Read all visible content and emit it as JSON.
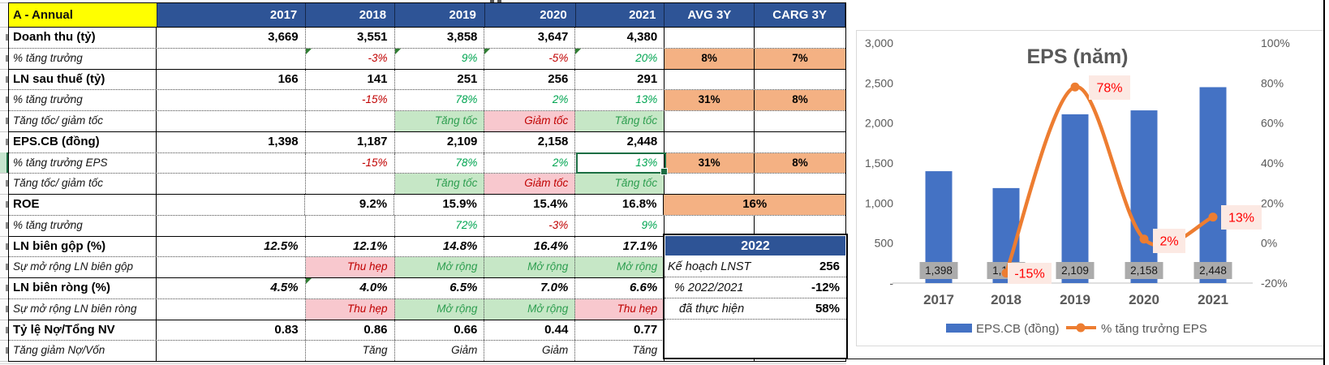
{
  "sheet": {
    "corner_label": "A - Annual",
    "header_columns": [
      "2017",
      "2018",
      "2019",
      "2020",
      "2021",
      "AVG 3Y",
      "CARG 3Y"
    ],
    "rows": [
      {
        "label": "Doanh thu (tỷ)",
        "kind": "metric",
        "cells": [
          {
            "t": "3,669"
          },
          {
            "t": "3,551"
          },
          {
            "t": "3,858"
          },
          {
            "t": "3,647"
          },
          {
            "t": "4,380"
          },
          {
            "t": ""
          },
          {
            "t": ""
          }
        ]
      },
      {
        "label": "% tăng trưởng",
        "kind": "sub",
        "cells": [
          {
            "t": ""
          },
          {
            "t": "-3%",
            "c": "red",
            "flag": true
          },
          {
            "t": "9%",
            "c": "green",
            "flag": true
          },
          {
            "t": "-5%",
            "c": "red",
            "flag": true
          },
          {
            "t": "20%",
            "c": "green",
            "flag": true
          },
          {
            "t": "8%",
            "bg": "orange"
          },
          {
            "t": "7%",
            "bg": "orange"
          }
        ]
      },
      {
        "label": "LN sau thuế (tỷ)",
        "kind": "metric",
        "cells": [
          {
            "t": "166"
          },
          {
            "t": "141"
          },
          {
            "t": "251"
          },
          {
            "t": "256"
          },
          {
            "t": "291"
          },
          {
            "t": ""
          },
          {
            "t": ""
          }
        ]
      },
      {
        "label": "% tăng trưởng",
        "kind": "sub",
        "cells": [
          {
            "t": ""
          },
          {
            "t": "-15%",
            "c": "red"
          },
          {
            "t": "78%",
            "c": "green"
          },
          {
            "t": "2%",
            "c": "green"
          },
          {
            "t": "13%",
            "c": "green"
          },
          {
            "t": "31%",
            "bg": "orange"
          },
          {
            "t": "8%",
            "bg": "orange"
          }
        ]
      },
      {
        "label": "Tăng tốc/ giảm tốc",
        "kind": "sub",
        "cells": [
          {
            "t": ""
          },
          {
            "t": ""
          },
          {
            "t": "Tăng tốc",
            "bg": "green"
          },
          {
            "t": "Giảm tốc",
            "bg": "pink"
          },
          {
            "t": "Tăng tốc",
            "bg": "green"
          },
          {
            "t": ""
          },
          {
            "t": ""
          }
        ]
      },
      {
        "label": "EPS.CB (đồng)",
        "kind": "metric",
        "cells": [
          {
            "t": "1,398"
          },
          {
            "t": "1,187"
          },
          {
            "t": "2,109"
          },
          {
            "t": "2,158"
          },
          {
            "t": "2,448"
          },
          {
            "t": ""
          },
          {
            "t": ""
          }
        ]
      },
      {
        "label": "% tăng trưởng EPS",
        "kind": "sub",
        "cells": [
          {
            "t": ""
          },
          {
            "t": "-15%",
            "c": "red"
          },
          {
            "t": "78%",
            "c": "green"
          },
          {
            "t": "2%",
            "c": "green"
          },
          {
            "t": "13%",
            "c": "green",
            "selected": true
          },
          {
            "t": "31%",
            "bg": "orange"
          },
          {
            "t": "8%",
            "bg": "orange"
          }
        ]
      },
      {
        "label": "Tăng tốc/ giảm tốc",
        "kind": "sub",
        "cells": [
          {
            "t": ""
          },
          {
            "t": ""
          },
          {
            "t": "Tăng tốc",
            "bg": "green"
          },
          {
            "t": "Giảm tốc",
            "bg": "pink"
          },
          {
            "t": "Tăng tốc",
            "bg": "green"
          },
          {
            "t": ""
          },
          {
            "t": ""
          }
        ]
      },
      {
        "label": "ROE",
        "kind": "metric",
        "cells": [
          {
            "t": ""
          },
          {
            "t": "9.2%"
          },
          {
            "t": "15.9%"
          },
          {
            "t": "15.4%"
          },
          {
            "t": "16.8%"
          },
          {
            "t": "16%",
            "bg": "orange",
            "span": 2
          }
        ]
      },
      {
        "label": "% tăng trưởng",
        "kind": "sub",
        "cells": [
          {
            "t": ""
          },
          {
            "t": ""
          },
          {
            "t": "72%",
            "c": "green"
          },
          {
            "t": "-3%",
            "c": "red"
          },
          {
            "t": "9%",
            "c": "green"
          },
          {
            "t": ""
          },
          {
            "t": ""
          }
        ]
      },
      {
        "label": "LN biên gộp (%)",
        "kind": "metric",
        "vi": true,
        "cells": [
          {
            "t": "12.5%"
          },
          {
            "t": "12.1%"
          },
          {
            "t": "14.8%"
          },
          {
            "t": "16.4%"
          },
          {
            "t": "17.1%"
          },
          {
            "t": ""
          },
          {
            "t": ""
          }
        ]
      },
      {
        "label": "Sự mở rộng LN biên gộp",
        "kind": "sub",
        "cells": [
          {
            "t": ""
          },
          {
            "t": "Thu hẹp",
            "bg": "pink"
          },
          {
            "t": "Mở rộng",
            "bg": "green"
          },
          {
            "t": "Mở rộng",
            "bg": "green"
          },
          {
            "t": "Mở rộng",
            "bg": "green"
          },
          {
            "t": ""
          },
          {
            "t": ""
          }
        ]
      },
      {
        "label": "LN biên ròng (%)",
        "kind": "metric",
        "vi": true,
        "cells": [
          {
            "t": "4.5%"
          },
          {
            "t": "4.0%",
            "flag": true
          },
          {
            "t": "6.5%"
          },
          {
            "t": "7.0%"
          },
          {
            "t": "6.6%"
          },
          {
            "t": ""
          },
          {
            "t": ""
          }
        ]
      },
      {
        "label": "Sự mở rộng LN biên ròng",
        "kind": "sub",
        "cells": [
          {
            "t": ""
          },
          {
            "t": "Thu hẹp",
            "bg": "pink"
          },
          {
            "t": "Mở rộng",
            "bg": "green"
          },
          {
            "t": "Mở rộng",
            "bg": "green"
          },
          {
            "t": "Thu hẹp",
            "bg": "pink"
          },
          {
            "t": ""
          },
          {
            "t": ""
          }
        ]
      },
      {
        "label": "Tỷ lệ Nợ/Tổng NV",
        "kind": "metric",
        "cells": [
          {
            "t": "0.83"
          },
          {
            "t": "0.86"
          },
          {
            "t": "0.66"
          },
          {
            "t": "0.44"
          },
          {
            "t": "0.77"
          },
          {
            "t": ""
          },
          {
            "t": ""
          }
        ]
      },
      {
        "label": "Tăng giảm Nợ/Vốn",
        "kind": "sub",
        "cells": [
          {
            "t": ""
          },
          {
            "t": "Tăng"
          },
          {
            "t": "Giảm"
          },
          {
            "t": "Giảm"
          },
          {
            "t": "Tăng"
          },
          {
            "t": ""
          },
          {
            "t": ""
          }
        ]
      }
    ]
  },
  "box2022": {
    "title": "2022",
    "items": [
      {
        "label": "Kế hoạch LNST",
        "value": "256",
        "indent": 4
      },
      {
        "label": "% 2022/2021",
        "value": "-12%",
        "indent": 12
      },
      {
        "label": "đã thực hiện",
        "value": "58%",
        "indent": 18
      }
    ]
  },
  "chart_data": {
    "type": "combo",
    "title": "EPS  (năm)",
    "categories": [
      "2017",
      "2018",
      "2019",
      "2020",
      "2021"
    ],
    "series": [
      {
        "name": "EPS.CB (đồng)",
        "type": "bar",
        "axis": "left",
        "values": [
          1398,
          1187,
          2109,
          2158,
          2448
        ],
        "labels": [
          "1,398",
          "1,187",
          "2,109",
          "2,158",
          "2,448"
        ],
        "color": "#4472C4"
      },
      {
        "name": "% tăng trưởng EPS",
        "type": "line",
        "axis": "right",
        "values": [
          null,
          -15,
          78,
          2,
          13
        ],
        "labels": [
          "",
          "-15%",
          "78%",
          "2%",
          "13%"
        ],
        "color": "#ED7D31"
      }
    ],
    "left_axis": {
      "ticks": [
        "3,000",
        "2,500",
        "2,000",
        "1,500",
        "1,000",
        "500",
        "-"
      ],
      "min": 0,
      "max": 3000
    },
    "right_axis": {
      "ticks": [
        "100%",
        "80%",
        "60%",
        "40%",
        "20%",
        "0%",
        "-20%"
      ],
      "min": -20,
      "max": 100
    },
    "legend_position": "bottom",
    "grid": false
  },
  "colors": {
    "header_blue": "#2E5496",
    "corner_yellow": "#FFFF00",
    "accent_orange_fill": "#F4B183",
    "good_green_fill": "#C6E7C6",
    "bad_pink_fill": "#F8C8CE",
    "green_text": "#00A551",
    "red_text": "#C00000",
    "bar_blue": "#4472C4",
    "line_orange": "#ED7D31",
    "point_label_red": "#FF0000",
    "point_label_bg": "#FCE9E3",
    "bar_label_gray": "#ABABAB",
    "axis_text_gray": "#595959"
  }
}
